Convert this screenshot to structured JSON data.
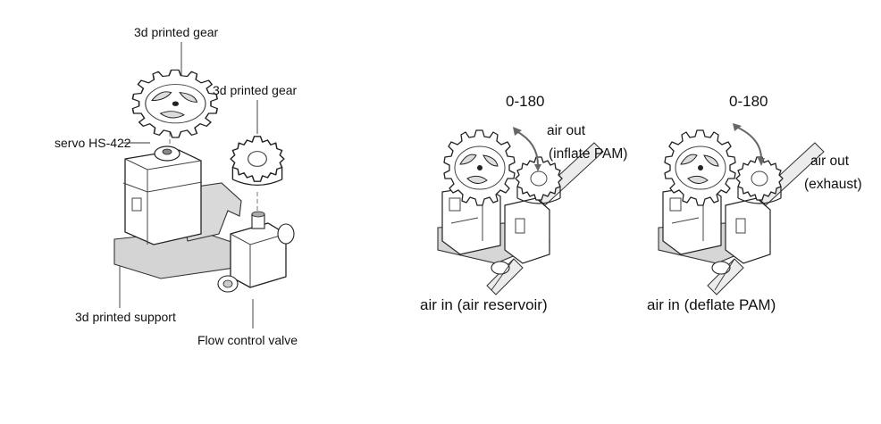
{
  "labels": {
    "gear_large": "3d printed gear",
    "gear_small": "3d printed gear",
    "servo": "servo HS-422",
    "support": "3d printed support",
    "valve": "Flow control valve",
    "range_1": "0-180",
    "air_out_1_line1": "air out",
    "air_out_1_line2": "(inflate PAM)",
    "air_in_1": "air in (air reservoir)",
    "range_2": "0-180",
    "air_out_2_line1": "air out",
    "air_out_2_line2": "(exhaust)",
    "air_in_2": "air in (deflate PAM)"
  }
}
